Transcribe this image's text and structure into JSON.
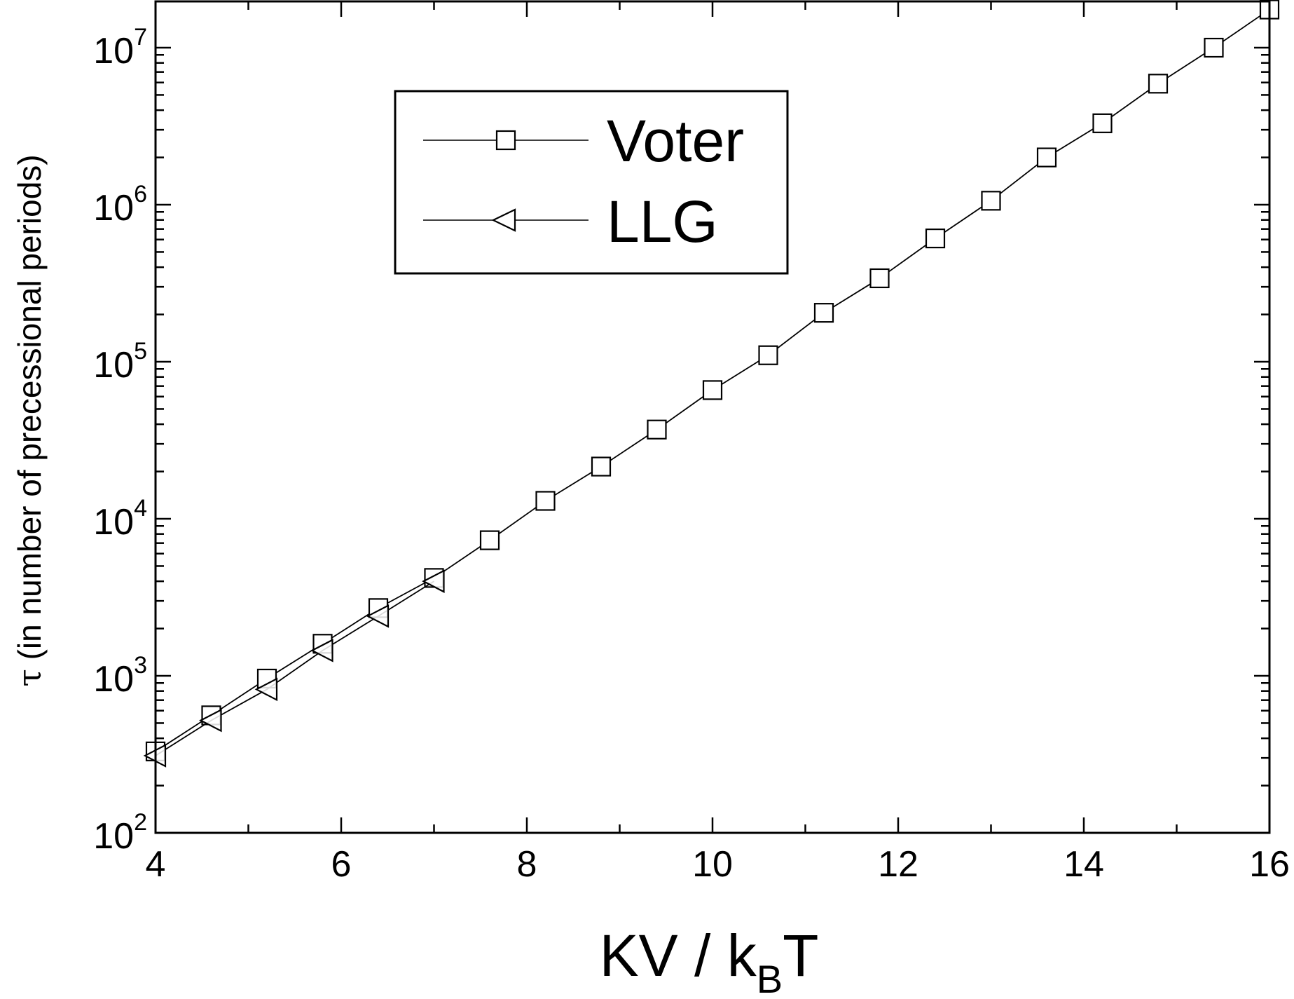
{
  "chart_data": {
    "type": "line",
    "title": "",
    "xlabel": {
      "main": "KV / k",
      "sub": "B",
      "tail": "T"
    },
    "ylabel": {
      "symbol": "τ",
      "text": "(in number of precessional periods)"
    },
    "xlim": [
      4,
      16
    ],
    "ylim": [
      100,
      20000000
    ],
    "yscale": "log",
    "x_ticks": [
      "4",
      "6",
      "8",
      "10",
      "12",
      "14",
      "16"
    ],
    "y_ticks": [
      {
        "base": "10",
        "exp": "2"
      },
      {
        "base": "10",
        "exp": "3"
      },
      {
        "base": "10",
        "exp": "4"
      },
      {
        "base": "10",
        "exp": "5"
      },
      {
        "base": "10",
        "exp": "6"
      },
      {
        "base": "10",
        "exp": "7"
      }
    ],
    "legend_position": "top-left",
    "series": [
      {
        "name": "Voter",
        "marker": "square",
        "x": [
          4.0,
          4.6,
          5.2,
          5.8,
          6.4,
          7.0,
          7.6,
          8.2,
          8.8,
          9.4,
          10.0,
          10.6,
          11.2,
          11.8,
          12.4,
          13.0,
          13.6,
          14.2,
          14.8,
          15.4,
          16.0
        ],
        "values": [
          330,
          560,
          960,
          1600,
          2700,
          4200,
          7300,
          13000,
          21500,
          37000,
          66000,
          110000,
          205000,
          340000,
          610000,
          1060000,
          2000000,
          3300000,
          5900000,
          10000000,
          17500000
        ]
      },
      {
        "name": "LLG",
        "marker": "triangle-left",
        "x": [
          4.0,
          4.6,
          5.2,
          5.8,
          6.4,
          7.0
        ],
        "values": [
          310,
          520,
          820,
          1450,
          2400,
          4000
        ]
      }
    ]
  }
}
